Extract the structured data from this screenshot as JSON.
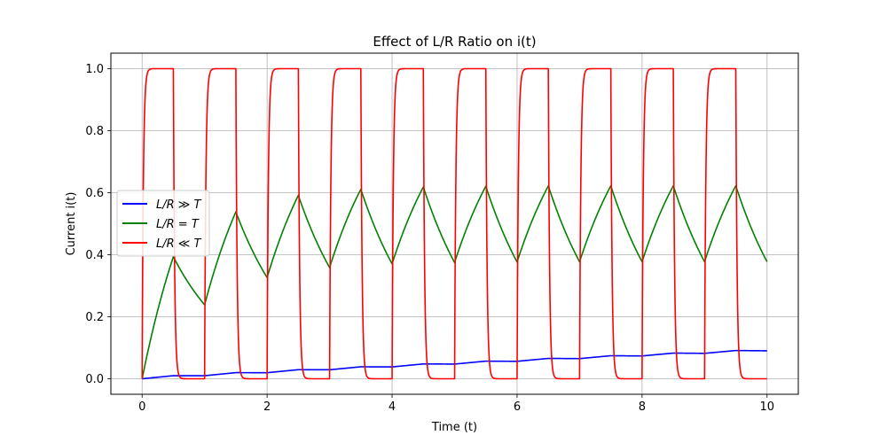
{
  "chart_data": {
    "type": "line",
    "title": "Effect of L/R Ratio on i(t)",
    "xlabel": "Time (t)",
    "ylabel": "Current i(t)",
    "xlim": [
      -0.5,
      10.5
    ],
    "ylim": [
      -0.05,
      1.05
    ],
    "x_ticks": [
      0,
      2,
      4,
      6,
      8,
      10
    ],
    "y_ticks": [
      0.0,
      0.2,
      0.4,
      0.6,
      0.8,
      1.0
    ],
    "x_tick_labels": [
      "0",
      "2",
      "4",
      "6",
      "8",
      "10"
    ],
    "y_tick_labels": [
      "0.0",
      "0.2",
      "0.4",
      "0.6",
      "0.8",
      "1.0"
    ],
    "grid": true,
    "legend_position": "center-left",
    "input": {
      "period": 1,
      "duty": 0.5,
      "t_start": 0,
      "t_end": 10
    },
    "series": [
      {
        "name": "L/R ≫ T",
        "color": "#0000ff",
        "tau": 50
      },
      {
        "name": "L/R = T",
        "color": "#008000",
        "tau": 1
      },
      {
        "name": "L/R ≪ T",
        "color": "#ff0000",
        "tau": 0.02
      }
    ]
  }
}
